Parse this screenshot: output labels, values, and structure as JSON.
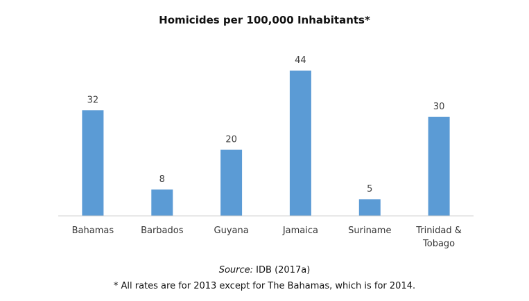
{
  "chart_data": {
    "type": "bar",
    "title": "Homicides per 100,000 Inhabitants*",
    "categories": [
      [
        "Bahamas"
      ],
      [
        "Barbados"
      ],
      [
        "Guyana"
      ],
      [
        "Jamaica"
      ],
      [
        "Suriname"
      ],
      [
        "Trinidad &",
        "Tobago"
      ]
    ],
    "values": [
      32,
      8,
      20,
      44,
      5,
      30
    ],
    "data_labels": [
      "32",
      "8",
      "20",
      "44",
      "5",
      "30"
    ],
    "ylim": [
      0,
      44
    ],
    "grid": false,
    "legend": "none",
    "bar_color": "#5b9bd5"
  },
  "source": {
    "prefix": "Source:",
    "text": " IDB (2017a)"
  },
  "footnote": "* All rates are for 2013 except for The Bahamas, which is for 2014."
}
